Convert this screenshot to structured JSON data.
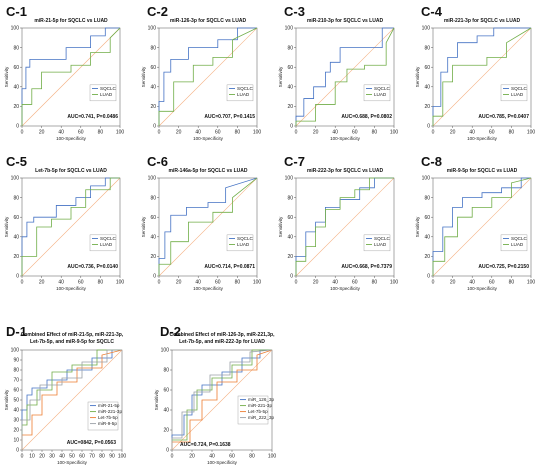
{
  "colors": {
    "blue": "#4472c4",
    "green": "#70ad47",
    "orange": "#ed7d31",
    "gray": "#9aa0a6",
    "diagonal": "#f4b183"
  },
  "chart_data": [
    {
      "id": "C-1",
      "type": "line",
      "title": "miR-21-5p for SQCLC vs LUAD",
      "xlabel": "100-Specificity",
      "ylabel": "Sensitivity",
      "xlim": [
        0,
        100
      ],
      "ylim": [
        0,
        100
      ],
      "xticks": [
        "0",
        "20",
        "40",
        "60",
        "80",
        "100"
      ],
      "yticks": [
        "0",
        "20",
        "40",
        "60",
        "80",
        "100"
      ],
      "annotation": "AUC=0.741, P=0.0486",
      "legend_position": "right",
      "series": [
        {
          "name": "SQCLC",
          "color": "#4472c4",
          "x": [
            0,
            0,
            4,
            4,
            8,
            8,
            45,
            45,
            70,
            70,
            85,
            85,
            100
          ],
          "y": [
            0,
            38,
            38,
            60,
            60,
            68,
            68,
            80,
            80,
            92,
            92,
            100,
            100
          ]
        },
        {
          "name": "LUAD",
          "color": "#70ad47",
          "x": [
            0,
            0,
            10,
            10,
            20,
            20,
            50,
            50,
            70,
            70,
            90,
            90,
            100
          ],
          "y": [
            0,
            22,
            22,
            38,
            38,
            55,
            55,
            62,
            62,
            75,
            75,
            90,
            100
          ]
        }
      ]
    },
    {
      "id": "C-2",
      "type": "line",
      "title": "miR-126-3p for SQCLC vs LUAD",
      "xlabel": "100-Specificity",
      "ylabel": "Sensitivity",
      "xlim": [
        0,
        100
      ],
      "ylim": [
        0,
        100
      ],
      "xticks": [
        "0",
        "20",
        "40",
        "60",
        "80",
        "100"
      ],
      "yticks": [
        "0",
        "20",
        "40",
        "60",
        "80",
        "100"
      ],
      "annotation": "AUC=0.707, P=0.1415",
      "legend_position": "right",
      "series": [
        {
          "name": "SQCLC",
          "color": "#4472c4",
          "x": [
            0,
            0,
            5,
            5,
            12,
            12,
            30,
            30,
            60,
            60,
            80,
            80,
            100
          ],
          "y": [
            0,
            25,
            25,
            55,
            55,
            68,
            68,
            80,
            80,
            88,
            88,
            100,
            100
          ]
        },
        {
          "name": "LUAD",
          "color": "#70ad47",
          "x": [
            0,
            0,
            15,
            15,
            35,
            35,
            55,
            55,
            75,
            75,
            100
          ],
          "y": [
            0,
            15,
            15,
            45,
            45,
            62,
            62,
            70,
            70,
            88,
            100
          ]
        }
      ]
    },
    {
      "id": "C-3",
      "type": "line",
      "title": "miR-210-3p for SQCLC vs LUAD",
      "xlabel": "100-Specificity",
      "ylabel": "Sensitivity",
      "xlim": [
        0,
        100
      ],
      "ylim": [
        0,
        100
      ],
      "xticks": [
        "0",
        "20",
        "40",
        "60",
        "80",
        "100"
      ],
      "yticks": [
        "0",
        "20",
        "40",
        "60",
        "80",
        "100"
      ],
      "annotation": "AUC=0.688, P=0.0802",
      "legend_position": "right",
      "series": [
        {
          "name": "SQCLC",
          "color": "#4472c4",
          "x": [
            0,
            0,
            8,
            8,
            18,
            18,
            30,
            30,
            35,
            35,
            45,
            45,
            88,
            88,
            100
          ],
          "y": [
            0,
            10,
            10,
            28,
            28,
            40,
            40,
            55,
            55,
            65,
            65,
            80,
            80,
            100,
            100
          ]
        },
        {
          "name": "LUAD",
          "color": "#70ad47",
          "x": [
            0,
            0,
            20,
            20,
            40,
            40,
            52,
            52,
            70,
            70,
            92,
            92,
            100
          ],
          "y": [
            0,
            5,
            5,
            22,
            22,
            45,
            45,
            58,
            58,
            62,
            62,
            85,
            100
          ]
        }
      ]
    },
    {
      "id": "C-4",
      "type": "line",
      "title": "miR-221-3p for SQCLC vs LUAD",
      "xlabel": "100-Specificity",
      "ylabel": "Sensitivity",
      "xlim": [
        0,
        100
      ],
      "ylim": [
        0,
        100
      ],
      "xticks": [
        "0",
        "20",
        "40",
        "60",
        "80",
        "100"
      ],
      "yticks": [
        "0",
        "20",
        "40",
        "60",
        "80",
        "100"
      ],
      "annotation": "AUC=0.785, P=0.0407",
      "legend_position": "right",
      "series": [
        {
          "name": "SQCLC",
          "color": "#4472c4",
          "x": [
            0,
            0,
            8,
            8,
            15,
            15,
            25,
            25,
            45,
            45,
            62,
            62,
            100
          ],
          "y": [
            0,
            20,
            20,
            55,
            55,
            70,
            70,
            85,
            85,
            92,
            92,
            100,
            100
          ]
        },
        {
          "name": "LUAD",
          "color": "#70ad47",
          "x": [
            0,
            0,
            10,
            10,
            20,
            20,
            55,
            55,
            75,
            75,
            100
          ],
          "y": [
            0,
            10,
            10,
            45,
            45,
            62,
            62,
            70,
            70,
            85,
            100
          ]
        }
      ]
    },
    {
      "id": "C-5",
      "type": "line",
      "title": "Let-7b-5p for SQCLC vs LUAD",
      "xlabel": "100-Specificity",
      "ylabel": "Sensitivity",
      "xlim": [
        0,
        100
      ],
      "ylim": [
        0,
        100
      ],
      "xticks": [
        "0",
        "20",
        "40",
        "60",
        "80",
        "100"
      ],
      "yticks": [
        "0",
        "20",
        "40",
        "60",
        "80",
        "100"
      ],
      "annotation": "AUC=0.736, P=0.0140",
      "legend_position": "right",
      "series": [
        {
          "name": "SQCLC",
          "color": "#4472c4",
          "x": [
            0,
            0,
            5,
            5,
            12,
            12,
            35,
            35,
            55,
            55,
            70,
            70,
            85,
            85,
            100
          ],
          "y": [
            0,
            40,
            40,
            55,
            55,
            60,
            60,
            72,
            72,
            80,
            80,
            92,
            92,
            100,
            100
          ]
        },
        {
          "name": "LUAD",
          "color": "#70ad47",
          "x": [
            0,
            0,
            15,
            15,
            30,
            30,
            50,
            50,
            65,
            65,
            90,
            90,
            100
          ],
          "y": [
            0,
            20,
            20,
            50,
            50,
            58,
            58,
            70,
            70,
            88,
            88,
            100,
            100
          ]
        }
      ]
    },
    {
      "id": "C-6",
      "type": "line",
      "title": "miR-146a-5p for SQCLC vs LUAD",
      "xlabel": "100-Specificity",
      "ylabel": "Sensitivity",
      "xlim": [
        0,
        100
      ],
      "ylim": [
        0,
        100
      ],
      "xticks": [
        "0",
        "20",
        "40",
        "60",
        "80",
        "100"
      ],
      "yticks": [
        "0",
        "20",
        "40",
        "60",
        "80",
        "100"
      ],
      "annotation": "AUC=0.714, P=0.0871",
      "legend_position": "right",
      "series": [
        {
          "name": "SQCLC",
          "color": "#4472c4",
          "x": [
            0,
            0,
            6,
            6,
            12,
            12,
            28,
            28,
            50,
            50,
            68,
            68,
            100
          ],
          "y": [
            0,
            18,
            18,
            45,
            45,
            62,
            62,
            70,
            70,
            75,
            75,
            90,
            100
          ]
        },
        {
          "name": "LUAD",
          "color": "#70ad47",
          "x": [
            0,
            0,
            12,
            12,
            30,
            30,
            55,
            55,
            75,
            75,
            100
          ],
          "y": [
            0,
            12,
            12,
            35,
            35,
            55,
            55,
            65,
            65,
            80,
            100
          ]
        }
      ]
    },
    {
      "id": "C-7",
      "type": "line",
      "title": "miR-222-3p for SQCLC vs LUAD",
      "xlabel": "100-Specificity",
      "ylabel": "Sensitivity",
      "xlim": [
        0,
        100
      ],
      "ylim": [
        0,
        100
      ],
      "xticks": [
        "0",
        "20",
        "40",
        "60",
        "80",
        "100"
      ],
      "yticks": [
        "0",
        "20",
        "40",
        "60",
        "80",
        "100"
      ],
      "annotation": "AUC=0.668, P=0.7379",
      "legend_position": "right",
      "series": [
        {
          "name": "SQCLC",
          "color": "#4472c4",
          "x": [
            0,
            0,
            10,
            10,
            20,
            20,
            30,
            30,
            45,
            45,
            65,
            65,
            80,
            80,
            100
          ],
          "y": [
            0,
            20,
            20,
            45,
            45,
            55,
            55,
            70,
            70,
            78,
            78,
            90,
            90,
            100,
            100
          ]
        },
        {
          "name": "LUAD",
          "color": "#70ad47",
          "x": [
            0,
            0,
            10,
            10,
            20,
            20,
            30,
            30,
            45,
            45,
            60,
            60,
            75,
            75,
            100
          ],
          "y": [
            0,
            15,
            15,
            30,
            30,
            50,
            50,
            68,
            68,
            80,
            80,
            88,
            88,
            100,
            100
          ]
        }
      ]
    },
    {
      "id": "C-8",
      "type": "line",
      "title": "miR-9-5p for SQCLC vs LUAD",
      "xlabel": "100-Specificity",
      "ylabel": "Sensitivity",
      "xlim": [
        0,
        100
      ],
      "ylim": [
        0,
        100
      ],
      "xticks": [
        "0",
        "20",
        "40",
        "60",
        "80",
        "100"
      ],
      "yticks": [
        "0",
        "20",
        "40",
        "60",
        "80",
        "100"
      ],
      "annotation": "AUC=0.725, P=0.2150",
      "legend_position": "right",
      "series": [
        {
          "name": "SQCLC",
          "color": "#4472c4",
          "x": [
            0,
            0,
            10,
            10,
            20,
            20,
            30,
            30,
            50,
            50,
            70,
            70,
            90,
            90,
            100
          ],
          "y": [
            0,
            25,
            25,
            50,
            50,
            70,
            70,
            80,
            80,
            85,
            85,
            90,
            90,
            100,
            100
          ]
        },
        {
          "name": "LUAD",
          "color": "#70ad47",
          "x": [
            0,
            0,
            12,
            12,
            25,
            25,
            40,
            40,
            60,
            60,
            80,
            80,
            100
          ],
          "y": [
            0,
            15,
            15,
            40,
            40,
            60,
            60,
            70,
            70,
            80,
            80,
            95,
            100
          ]
        }
      ]
    },
    {
      "id": "D-1",
      "type": "line",
      "title_lines": [
        "Combined Effect of miR-21-5p, miR-221-3p,",
        "Let-7b-5p, and miR-9-5p for SQCLC"
      ],
      "xlabel": "100-Specificity",
      "ylabel": "Sensitivity",
      "xlim": [
        0,
        100
      ],
      "ylim": [
        0,
        100
      ],
      "xticks": [
        "0",
        "10",
        "20",
        "30",
        "40",
        "50",
        "60",
        "70",
        "80",
        "90",
        "100"
      ],
      "yticks": [
        "0",
        "10",
        "20",
        "30",
        "40",
        "50",
        "60",
        "70",
        "80",
        "90",
        "100"
      ],
      "annotation": "AUC=0842, P=0.0563",
      "legend_position": "right",
      "series": [
        {
          "name": "miR-21-5p",
          "color": "#4472c4",
          "x": [
            0,
            0,
            5,
            5,
            10,
            10,
            25,
            25,
            45,
            45,
            70,
            70,
            90,
            90,
            100
          ],
          "y": [
            0,
            40,
            40,
            55,
            55,
            62,
            62,
            70,
            70,
            80,
            80,
            92,
            92,
            100,
            100
          ]
        },
        {
          "name": "miR-221-3p",
          "color": "#70ad47",
          "x": [
            0,
            0,
            5,
            5,
            15,
            15,
            30,
            30,
            50,
            50,
            75,
            75,
            100
          ],
          "y": [
            0,
            25,
            25,
            45,
            45,
            60,
            60,
            78,
            78,
            85,
            85,
            100,
            100
          ]
        },
        {
          "name": "Let-7b-5p",
          "color": "#ed7d31",
          "x": [
            0,
            0,
            10,
            10,
            20,
            20,
            35,
            35,
            55,
            55,
            80,
            80,
            100
          ],
          "y": [
            0,
            15,
            15,
            35,
            35,
            55,
            55,
            68,
            68,
            82,
            82,
            95,
            100
          ]
        },
        {
          "name": "miR-9-5p",
          "color": "#9aa0a6",
          "x": [
            0,
            0,
            8,
            8,
            18,
            18,
            40,
            40,
            60,
            60,
            85,
            85,
            100
          ],
          "y": [
            0,
            30,
            30,
            50,
            50,
            65,
            65,
            72,
            72,
            88,
            88,
            100,
            100
          ]
        }
      ]
    },
    {
      "id": "D-2",
      "type": "line",
      "title_lines": [
        "Combined Effect of miR-126-3p, miR-221,3p,",
        "Let-7b-5p, and miR-222-3p for LUAD"
      ],
      "xlabel": "100-Specificity",
      "ylabel": "Sensitivity",
      "xlim": [
        0,
        100
      ],
      "ylim": [
        0,
        100
      ],
      "xticks": [
        "0",
        "20",
        "40",
        "60",
        "80",
        "100"
      ],
      "yticks": [
        "0",
        "20",
        "40",
        "60",
        "80",
        "100"
      ],
      "annotation": "AUC=0.724, P=0.1638",
      "legend_position": "center-right",
      "series": [
        {
          "name": "miR_126_3p",
          "color": "#4472c4",
          "x": [
            0,
            0,
            12,
            12,
            20,
            20,
            30,
            30,
            50,
            50,
            70,
            70,
            88,
            88,
            100
          ],
          "y": [
            0,
            15,
            15,
            35,
            35,
            55,
            55,
            65,
            65,
            78,
            78,
            92,
            92,
            100,
            100
          ]
        },
        {
          "name": "miR-221-3p",
          "color": "#70ad47",
          "x": [
            0,
            0,
            15,
            15,
            25,
            25,
            40,
            40,
            60,
            60,
            80,
            80,
            100
          ],
          "y": [
            0,
            10,
            10,
            40,
            40,
            60,
            60,
            72,
            72,
            85,
            85,
            100,
            100
          ]
        },
        {
          "name": "Let-7b-5p",
          "color": "#ed7d31",
          "x": [
            0,
            0,
            18,
            18,
            30,
            30,
            45,
            45,
            65,
            65,
            85,
            85,
            100
          ],
          "y": [
            0,
            8,
            8,
            30,
            30,
            50,
            50,
            68,
            68,
            80,
            80,
            95,
            100
          ]
        },
        {
          "name": "miR_222_3p",
          "color": "#9aa0a6",
          "x": [
            0,
            0,
            10,
            10,
            22,
            22,
            38,
            38,
            58,
            58,
            78,
            78,
            100
          ],
          "y": [
            0,
            12,
            12,
            38,
            38,
            58,
            58,
            75,
            75,
            88,
            88,
            98,
            100
          ]
        }
      ]
    }
  ]
}
